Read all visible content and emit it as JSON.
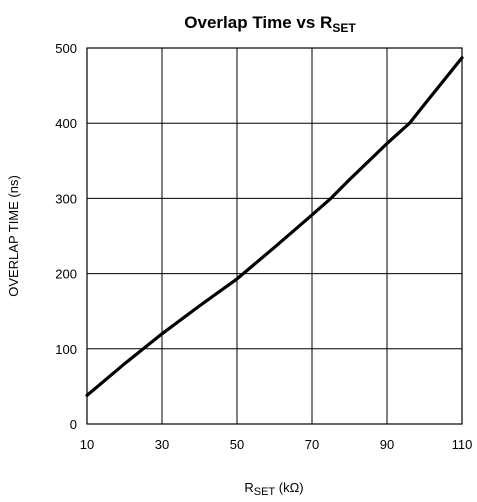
{
  "chart_data": {
    "type": "line",
    "title": {
      "text": "Overlap Time vs R",
      "sub": "SET"
    },
    "xlabel": {
      "pre": "R",
      "sub": "SET",
      "post": " (kΩ)"
    },
    "ylabel": "OVERLAP TIME (ns)",
    "xlim": [
      10,
      110
    ],
    "ylim": [
      0,
      500
    ],
    "xticks": [
      10,
      30,
      50,
      70,
      90,
      110
    ],
    "yticks": [
      0,
      100,
      200,
      300,
      400,
      500
    ],
    "grid": true,
    "line_color": "#000000",
    "series": [
      {
        "x": [
          10,
          20,
          30,
          40,
          50,
          60,
          70,
          75,
          80,
          90,
          96,
          100,
          110
        ],
        "y": [
          38,
          80,
          120,
          157,
          193,
          235,
          278,
          300,
          325,
          373,
          400,
          425,
          487
        ]
      }
    ]
  }
}
